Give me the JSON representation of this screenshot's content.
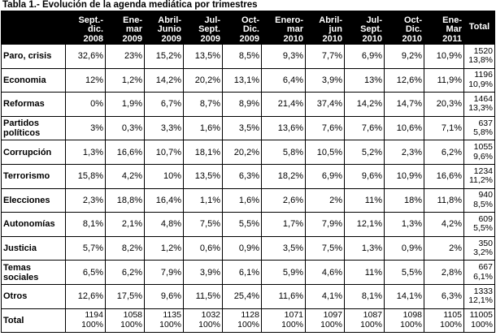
{
  "title": "Tabla 1.- Evolución de la agenda mediática por trimestres",
  "columns": [
    "",
    "Sept.-\ndic.\n2008",
    "Ene-\nmar\n2009",
    "Abril-\nJunio\n2009",
    "Jul-\nSept.\n2009",
    "Oct-\nDic.\n2009",
    "Enero-\nmar\n2010",
    "Abril-\njun\n2010",
    "Jul-\nSept.\n2010",
    "Oct-\nDic.\n2010",
    "Ene-\nMar\n2011",
    "Total"
  ],
  "rows": [
    {
      "label": "Paro, crisis",
      "values": [
        "32,6%",
        "23%",
        "15,2%",
        "13,5%",
        "8,5%",
        "9,3%",
        "7,7%",
        "6,9%",
        "9,2%",
        "10,9%"
      ],
      "total": "1520\n13,8%"
    },
    {
      "label": "Economia",
      "values": [
        "12%",
        "1,2%",
        "14,2%",
        "20,2%",
        "13,1%",
        "6,4%",
        "3,9%",
        "13%",
        "12,6%",
        "11,9%"
      ],
      "total": "1196\n10,9%"
    },
    {
      "label": "Reformas",
      "values": [
        "0%",
        "1,9%",
        "6,7%",
        "8,7%",
        "8,9%",
        "21,4%",
        "37,4%",
        "14,2%",
        "14,7%",
        "20,3%"
      ],
      "total": "1464\n13,3%"
    },
    {
      "label": "Partidos\npolíticos",
      "values": [
        "3%",
        "0,3%",
        "3,3%",
        "1,6%",
        "3,5%",
        "13,6%",
        "7,6%",
        "7,6%",
        "10,6%",
        "7,1%"
      ],
      "total": "637\n5,8%"
    },
    {
      "label": "Corrupción",
      "values": [
        "1,3%",
        "16,6%",
        "10,7%",
        "18,1%",
        "20,2%",
        "5,8%",
        "10,5%",
        "5,2%",
        "2,3%",
        "6,2%"
      ],
      "total": "1055\n9,6%"
    },
    {
      "label": "Terrorismo",
      "values": [
        "15,8%",
        "4,2%",
        "10%",
        "13,5%",
        "6,3%",
        "18,2%",
        "6,9%",
        "9,6%",
        "10,9%",
        "16,6%"
      ],
      "total": "1234\n11,2%"
    },
    {
      "label": "Elecciones",
      "values": [
        "2,3%",
        "18,8%",
        "16,4%",
        "1,1%",
        "1,6%",
        "2,6%",
        "2%",
        "11%",
        "18%",
        "11,8%"
      ],
      "total": "940\n8,5%"
    },
    {
      "label": "Autonomías",
      "values": [
        "8,1%",
        "2,1%",
        "4,8%",
        "7,5%",
        "5,5%",
        "1,7%",
        "7,9%",
        "12,1%",
        "1,3%",
        "4,2%"
      ],
      "total": "609\n5,5%"
    },
    {
      "label": "Justicia",
      "values": [
        "5,7%",
        "8,2%",
        "1,2%",
        "0,6%",
        "0,9%",
        "3,5%",
        "7,5%",
        "1,3%",
        "0,9%",
        "2%"
      ],
      "total": "350\n3,2%"
    },
    {
      "label": "Temas\nsociales",
      "values": [
        "6,5%",
        "6,2%",
        "7,9%",
        "3,9%",
        "6,1%",
        "5,9%",
        "4,6%",
        "11%",
        "5,5%",
        "2,8%"
      ],
      "total": "667\n6,1%"
    },
    {
      "label": "Otros",
      "values": [
        "12,6%",
        "17,5%",
        "9,6%",
        "11,5%",
        "25,4%",
        "11,6%",
        "4,1%",
        "8,1%",
        "14,1%",
        "6,3%"
      ],
      "total": "1333\n12,1%"
    },
    {
      "label": "Total",
      "values": [
        "1194\n100%",
        "1058\n100%",
        "1135\n100%",
        "1032\n100%",
        "1128\n100%",
        "1071\n100%",
        "1097\n100%",
        "1087\n100%",
        "1098\n100%",
        "1105\n100%"
      ],
      "total": "11005\n100%",
      "final": true
    }
  ]
}
